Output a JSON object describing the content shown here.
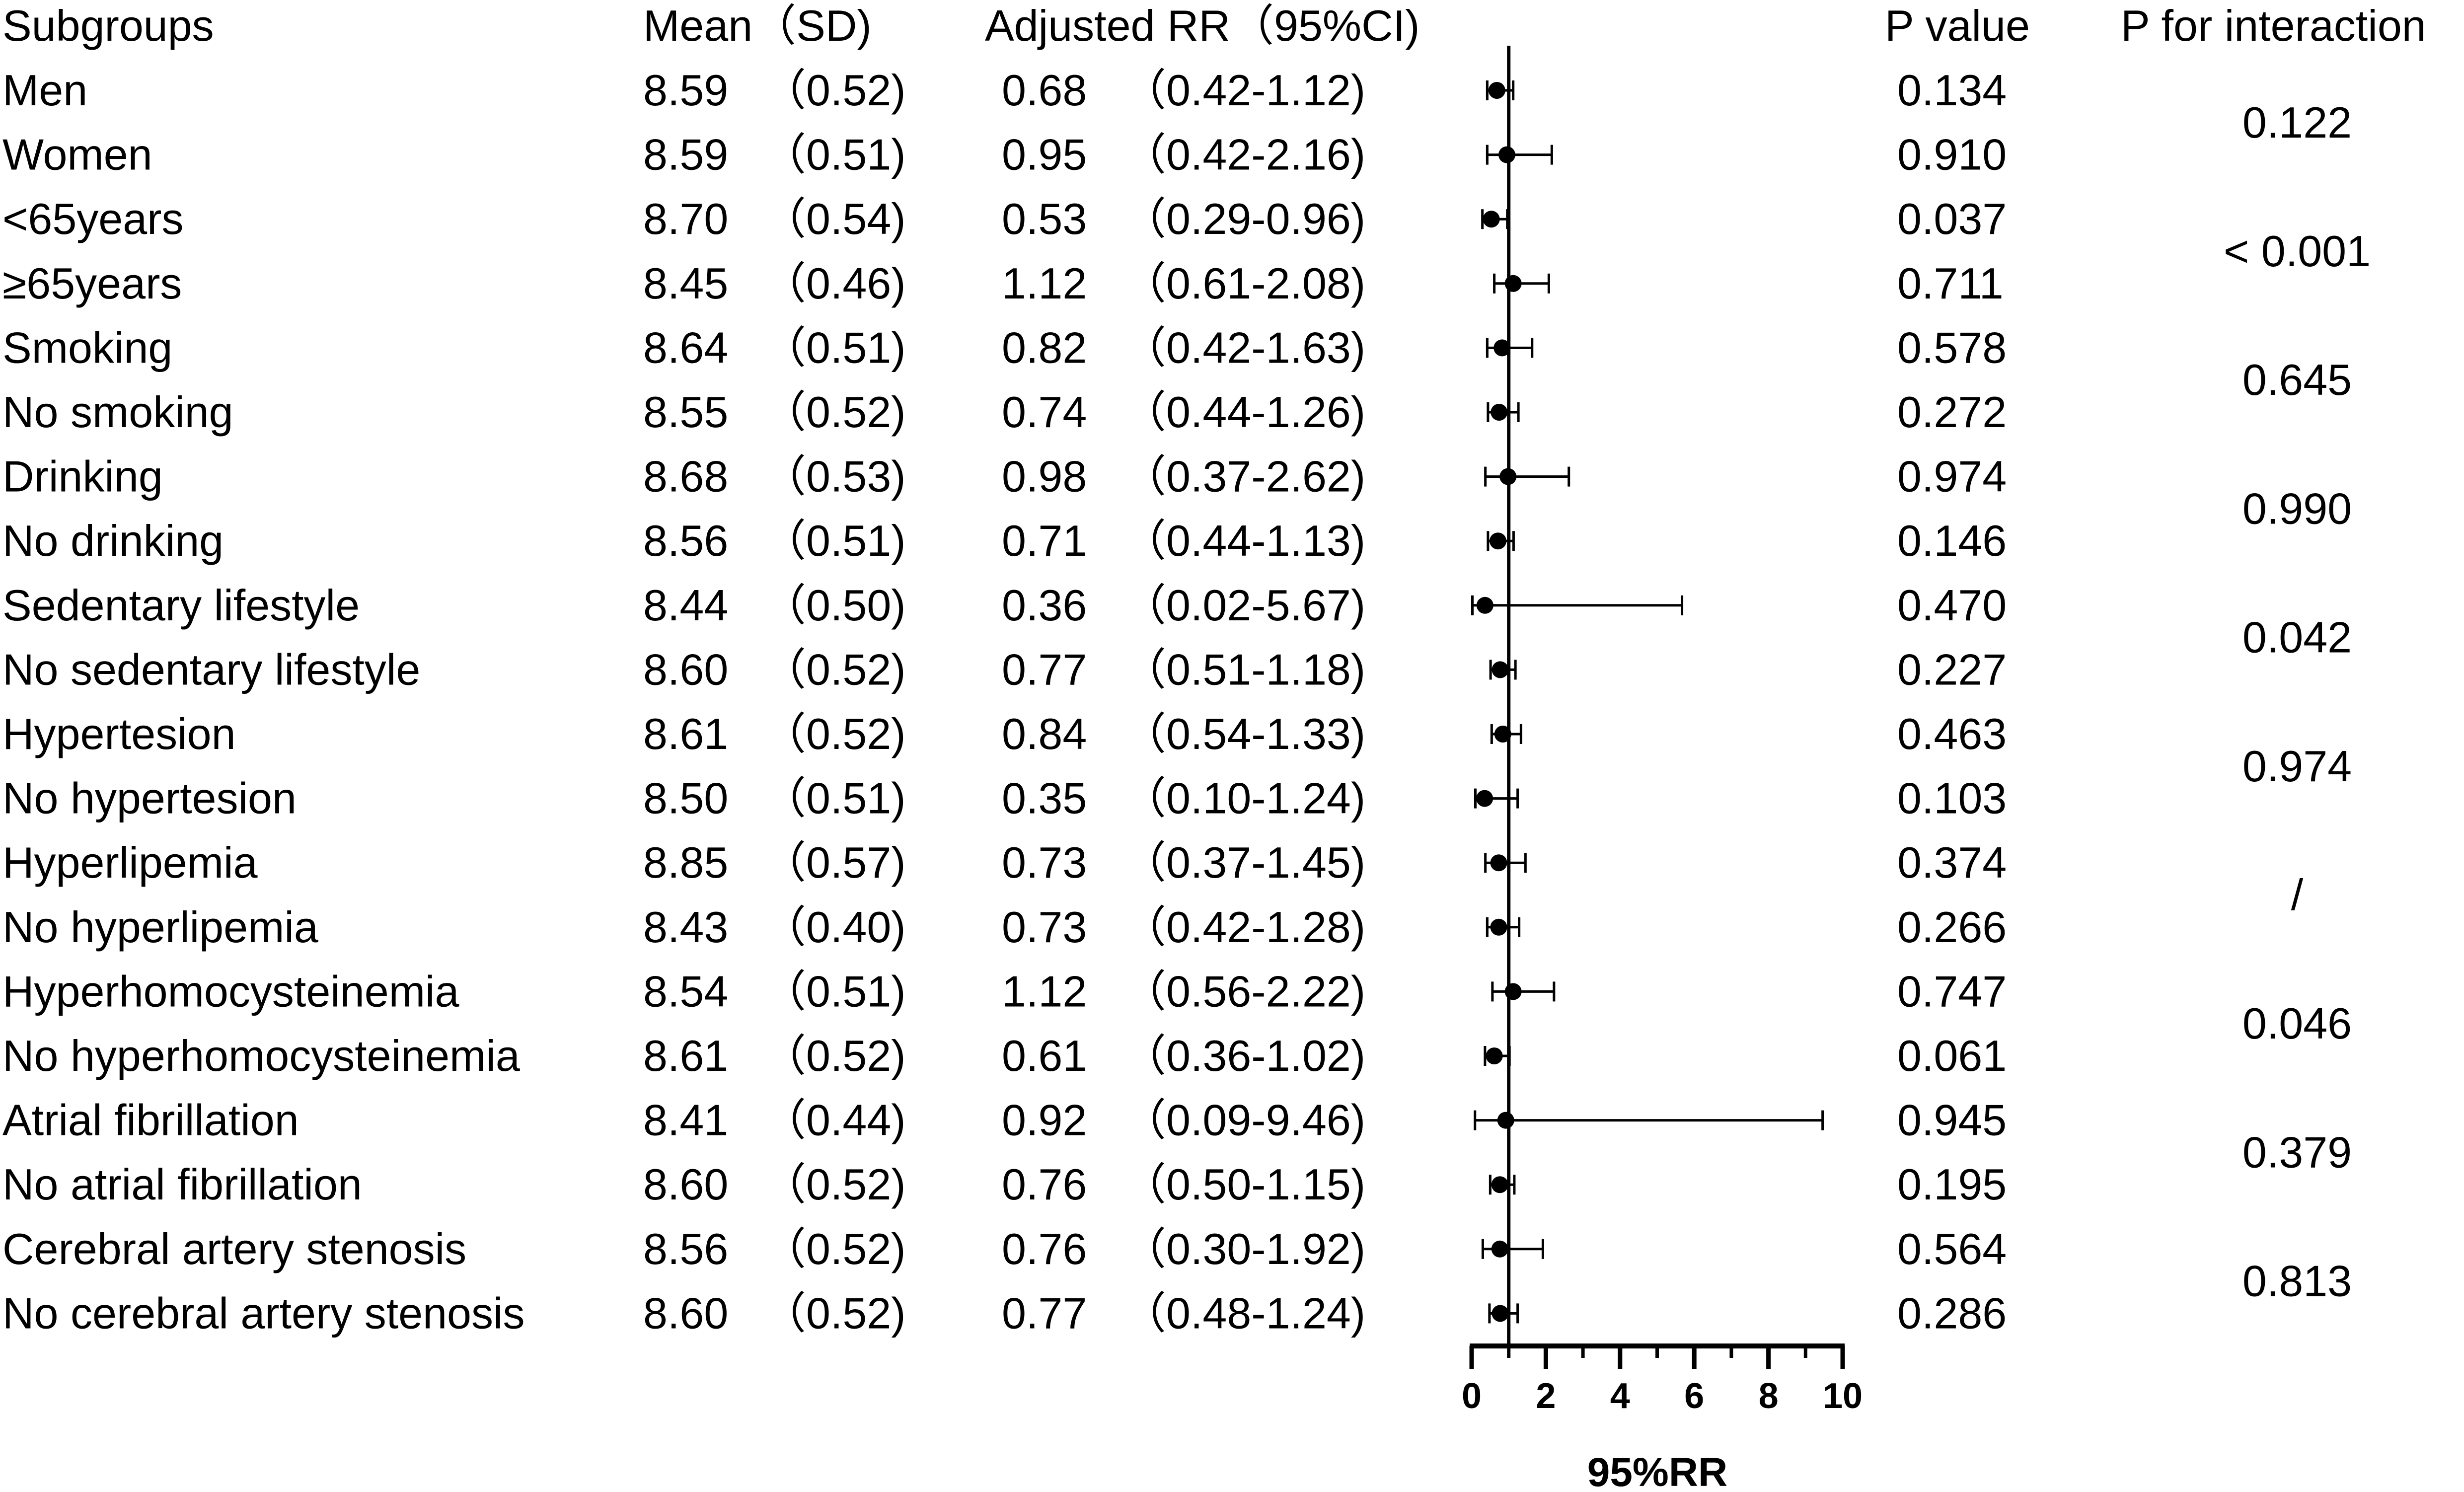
{
  "headers": {
    "subgroups": "Subgroups",
    "mean_sd": "Mean（SD)",
    "adjusted_rr": "Adjusted RR（95%CI)",
    "p_value": "P value",
    "p_interaction": "P for interaction"
  },
  "chart_data": {
    "type": "forest",
    "xlabel": "95%RR",
    "xlim": [
      0,
      10
    ],
    "xticks": [
      "0",
      "2",
      "4",
      "6",
      "8",
      "10"
    ],
    "reference_line": 1,
    "grid": false,
    "rows": [
      {
        "label": "Men",
        "mean": "8.59",
        "sd": "（0.52)",
        "rr_text": "0.68",
        "ci_text": "（0.42-1.12)",
        "rr": 0.68,
        "lo": 0.42,
        "hi": 1.12,
        "p": "0.134"
      },
      {
        "label": "Women",
        "mean": "8.59",
        "sd": "（0.51)",
        "rr_text": "0.95",
        "ci_text": "（0.42-2.16)",
        "rr": 0.95,
        "lo": 0.42,
        "hi": 2.16,
        "p": "0.910"
      },
      {
        "label": "<65years",
        "mean": "8.70",
        "sd": "（0.54)",
        "rr_text": "0.53",
        "ci_text": "（0.29-0.96)",
        "rr": 0.53,
        "lo": 0.29,
        "hi": 0.96,
        "p": "0.037"
      },
      {
        "label": "≥65years",
        "mean": "8.45",
        "sd": "（0.46)",
        "rr_text": "1.12",
        "ci_text": "（0.61-2.08)",
        "rr": 1.12,
        "lo": 0.61,
        "hi": 2.08,
        "p": "0.711"
      },
      {
        "label": "Smoking",
        "mean": "8.64",
        "sd": "（0.51)",
        "rr_text": "0.82",
        "ci_text": "（0.42-1.63)",
        "rr": 0.82,
        "lo": 0.42,
        "hi": 1.63,
        "p": "0.578"
      },
      {
        "label": "No smoking",
        "mean": "8.55",
        "sd": "（0.52)",
        "rr_text": "0.74",
        "ci_text": "（0.44-1.26)",
        "rr": 0.74,
        "lo": 0.44,
        "hi": 1.26,
        "p": "0.272"
      },
      {
        "label": "Drinking",
        "mean": "8.68",
        "sd": "（0.53)",
        "rr_text": "0.98",
        "ci_text": "（0.37-2.62)",
        "rr": 0.98,
        "lo": 0.37,
        "hi": 2.62,
        "p": "0.974"
      },
      {
        "label": "No drinking",
        "mean": "8.56",
        "sd": "（0.51)",
        "rr_text": "0.71",
        "ci_text": "（0.44-1.13)",
        "rr": 0.71,
        "lo": 0.44,
        "hi": 1.13,
        "p": "0.146"
      },
      {
        "label": "Sedentary lifestyle",
        "mean": "8.44",
        "sd": "（0.50)",
        "rr_text": "0.36",
        "ci_text": "（0.02-5.67)",
        "rr": 0.36,
        "lo": 0.02,
        "hi": 5.67,
        "p": "0.470"
      },
      {
        "label": "No sedentary lifestyle",
        "mean": "8.60",
        "sd": "（0.52)",
        "rr_text": "0.77",
        "ci_text": "（0.51-1.18)",
        "rr": 0.77,
        "lo": 0.51,
        "hi": 1.18,
        "p": "0.227"
      },
      {
        "label": "Hypertesion",
        "mean": "8.61",
        "sd": "（0.52)",
        "rr_text": "0.84",
        "ci_text": "（0.54-1.33)",
        "rr": 0.84,
        "lo": 0.54,
        "hi": 1.33,
        "p": "0.463"
      },
      {
        "label": "No hypertesion",
        "mean": "8.50",
        "sd": "（0.51)",
        "rr_text": "0.35",
        "ci_text": "（0.10-1.24)",
        "rr": 0.35,
        "lo": 0.1,
        "hi": 1.24,
        "p": "0.103"
      },
      {
        "label": "Hyperlipemia",
        "mean": "8.85",
        "sd": "（0.57)",
        "rr_text": "0.73",
        "ci_text": "（0.37-1.45)",
        "rr": 0.73,
        "lo": 0.37,
        "hi": 1.45,
        "p": "0.374"
      },
      {
        "label": "No hyperlipemia",
        "mean": "8.43",
        "sd": "（0.40)",
        "rr_text": "0.73",
        "ci_text": "（0.42-1.28)",
        "rr": 0.73,
        "lo": 0.42,
        "hi": 1.28,
        "p": "0.266"
      },
      {
        "label": "Hyperhomocysteinemia",
        "mean": "8.54",
        "sd": "（0.51)",
        "rr_text": "1.12",
        "ci_text": "（0.56-2.22)",
        "rr": 1.12,
        "lo": 0.56,
        "hi": 2.22,
        "p": "0.747"
      },
      {
        "label": "No hyperhomocysteinemia",
        "mean": "8.61",
        "sd": "（0.52)",
        "rr_text": "0.61",
        "ci_text": "（0.36-1.02)",
        "rr": 0.61,
        "lo": 0.36,
        "hi": 1.02,
        "p": "0.061"
      },
      {
        "label": "Atrial fibrillation",
        "mean": "8.41",
        "sd": "（0.44)",
        "rr_text": "0.92",
        "ci_text": "（0.09-9.46)",
        "rr": 0.92,
        "lo": 0.09,
        "hi": 9.46,
        "p": "0.945"
      },
      {
        "label": "No atrial fibrillation",
        "mean": "8.60",
        "sd": "（0.52)",
        "rr_text": "0.76",
        "ci_text": "（0.50-1.15)",
        "rr": 0.76,
        "lo": 0.5,
        "hi": 1.15,
        "p": "0.195"
      },
      {
        "label": "Cerebral artery stenosis",
        "mean": "8.56",
        "sd": "（0.52)",
        "rr_text": "0.76",
        "ci_text": "（0.30-1.92)",
        "rr": 0.76,
        "lo": 0.3,
        "hi": 1.92,
        "p": "0.564"
      },
      {
        "label": "No cerebral artery stenosis",
        "mean": "8.60",
        "sd": "（0.52)",
        "rr_text": "0.77",
        "ci_text": "（0.48-1.24)",
        "rr": 0.77,
        "lo": 0.48,
        "hi": 1.24,
        "p": "0.286"
      }
    ],
    "interactions": [
      "0.122",
      "< 0.001",
      "0.645",
      "0.990",
      "0.042",
      "0.974",
      "/",
      "0.046",
      "0.379",
      "0.813"
    ]
  },
  "colors": {
    "text": "#000000",
    "marker": "#000000",
    "background": "#ffffff"
  }
}
